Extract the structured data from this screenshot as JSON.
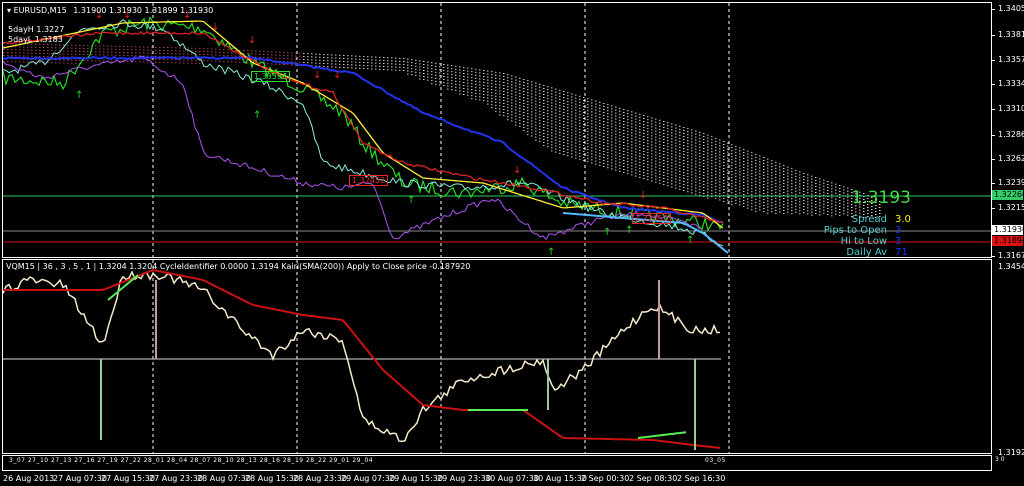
{
  "main_chart": {
    "symbol_header": "EURUSD,M15",
    "ohlc": "1.31900 1.31930 1.31899 1.31930",
    "day_high": "5dayH 1.3227",
    "day_low": "5dayL 1.3183",
    "price_axis": [
      "1.34050",
      "1.33815",
      "1.33575",
      "1.33340",
      "1.33100",
      "1.32865",
      "1.32625",
      "1.32390",
      "1.32150",
      "1.31675"
    ],
    "price_boxes": {
      "green": {
        "label": "1.32266",
        "color": "#33cc66"
      },
      "white": {
        "label": "1.31930",
        "color": "#ffffff"
      },
      "red": {
        "label": "1.31894",
        "color": "#dd1111"
      }
    },
    "chart_labels": [
      "1.33396",
      "1.32452",
      "1.32052"
    ],
    "info_panel": {
      "price": "1.3193",
      "rows": [
        {
          "label": "Spread",
          "value": "3.0",
          "value_color": "#ffee00"
        },
        {
          "label": "Pips to Open",
          "value": "3",
          "value_color": "#1133ff"
        },
        {
          "label": "Hi to Low",
          "value": "3",
          "value_color": "#1133ff"
        },
        {
          "label": "Daily Av",
          "value": "71",
          "value_color": "#1133ff"
        }
      ]
    }
  },
  "indicator": {
    "header": "VQM15 | 36 , 3 , 5 , 1 | 1.3204 1.3204 CycleIdentifier 0.0000 1.3194 Kairi(SMA(200)) Apply to Close price -0.187920",
    "axis_top": "1.3454",
    "axis_bottom": "1.3192"
  },
  "mini_bar": {
    "labels": "3_07 27_10 27_13 27_16 27_19 27_22 28_01 28_04 28_07 28_10 28_13 28_16 28_19 28_22 29_01 29_04",
    "end_label": "03_05",
    "side_label": "3 0"
  },
  "time_axis": [
    "26 Aug 2013",
    "27 Aug 07:30",
    "27 Aug 15:30",
    "27 Aug 23:30",
    "28 Aug 07:30",
    "28 Aug 15:30",
    "28 Aug 23:30",
    "29 Aug 07:30",
    "29 Aug 15:30",
    "29 Aug 23:30",
    "30 Aug 07:30",
    "30 Aug 15:30",
    "2 Sep 00:30",
    "2 Sep 08:30",
    "2 Sep 16:30"
  ]
}
